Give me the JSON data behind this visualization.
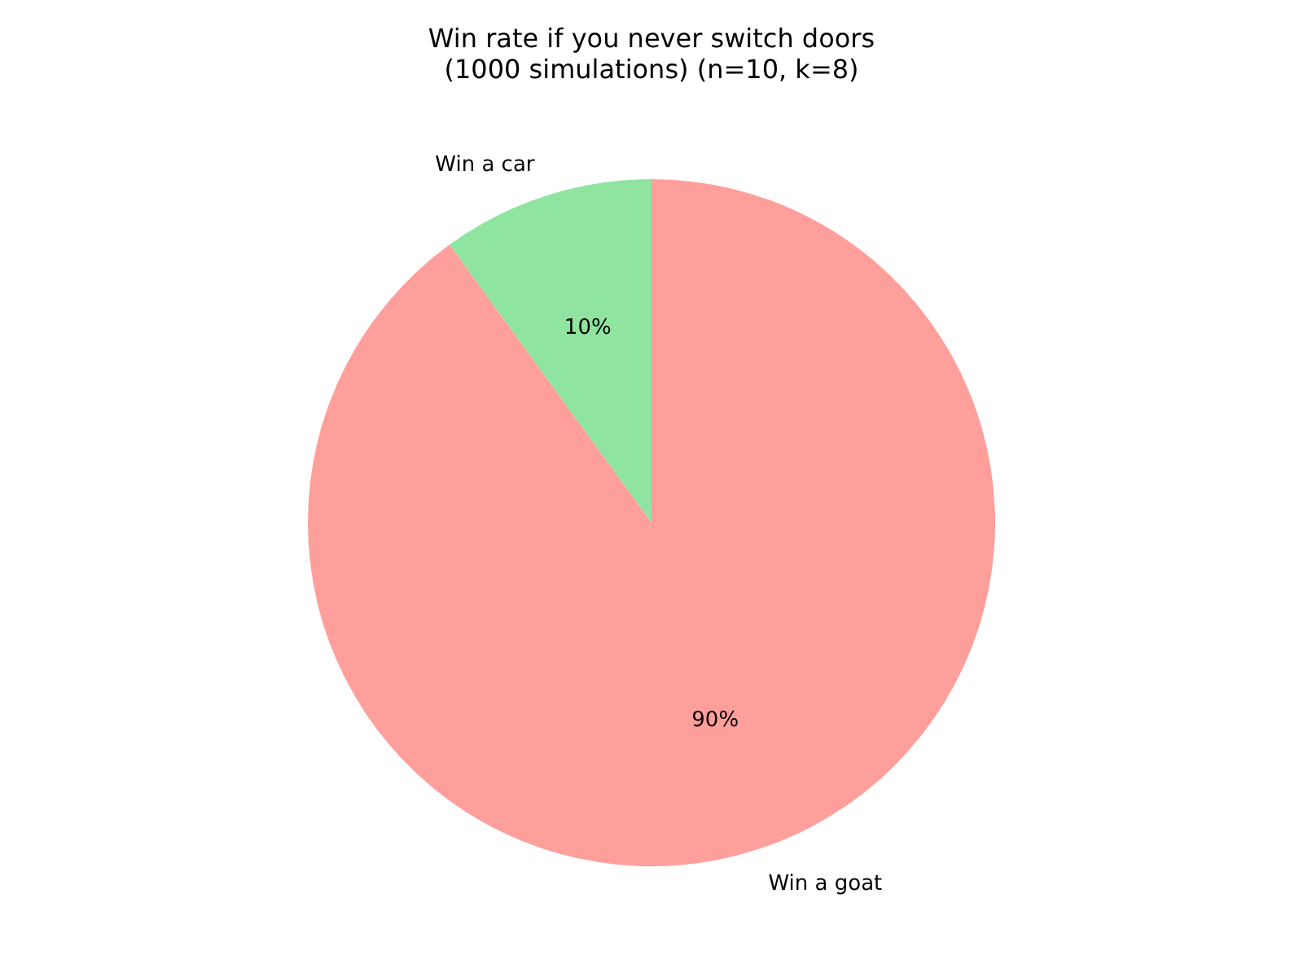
{
  "chart_data": {
    "type": "pie",
    "title": "Win rate if you never switch doors\n(1000 simulations) (n=10, k=8)",
    "categories": [
      "Win a car",
      "Win a goat"
    ],
    "values": [
      10,
      90
    ],
    "colors": [
      "#8fe4a0",
      "#ff9f9b"
    ],
    "value_labels": [
      "10%",
      "90%"
    ]
  }
}
